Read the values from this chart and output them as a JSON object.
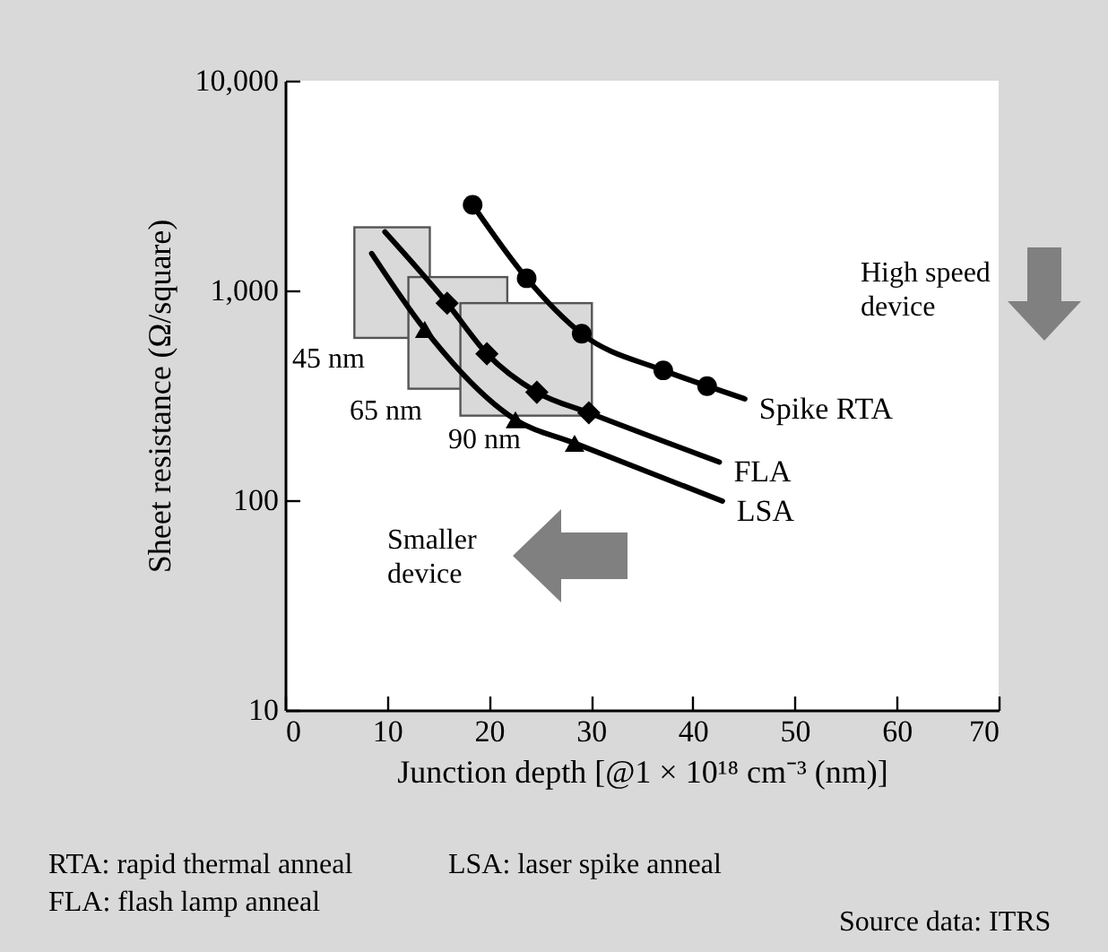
{
  "chart_data": {
    "type": "line",
    "xlabel": "Junction depth [@1 × 10¹⁸ cm⁻³ (nm)]",
    "ylabel": "Sheet resistance (Ω/square)",
    "xlim": [
      0,
      70
    ],
    "xticks": [
      0,
      10,
      20,
      30,
      40,
      50,
      60,
      70
    ],
    "ylim": [
      10,
      10000
    ],
    "log": "y",
    "yticks": [
      10,
      100,
      {
        "value": 1000,
        "label": "1,000"
      },
      {
        "value": 10000,
        "label": "10,000"
      }
    ],
    "grid": false,
    "marker": "none",
    "line_style": "solid",
    "series": [
      {
        "name": "Spike RTA",
        "color": "#000000",
        "x": [
          18.4,
          23.7,
          29.1,
          37.1,
          41.4,
          45.1
        ],
        "values": [
          2560,
          1143,
          622,
          416,
          350,
          304
        ]
      },
      {
        "name": "FLA",
        "color": "#000000",
        "x": [
          9.8,
          15.9,
          19.8,
          24.7,
          29.8,
          42.6
        ],
        "values": [
          1900,
          869,
          499,
          327,
          261,
          152
        ]
      },
      {
        "name": "LSA",
        "color": "#000000",
        "x": [
          8.5,
          13.7,
          22.6,
          28.4,
          42.9
        ],
        "values": [
          1500,
          652,
          242,
          187,
          99
        ]
      },
      {
        "type": "scatter",
        "marker": "circle",
        "color": "#000000",
        "x": [
          18.4,
          23.7,
          29.1,
          37.1,
          41.4
        ],
        "values": [
          2560,
          1143,
          622,
          416,
          350
        ]
      },
      {
        "type": "scatter",
        "marker": "diamond",
        "color": "#000000",
        "x": [
          15.9,
          19.8,
          24.7,
          29.8
        ],
        "values": [
          869,
          499,
          327,
          261
        ]
      },
      {
        "type": "scatter",
        "marker": "triangle",
        "color": "#000000",
        "x": [
          13.7,
          22.6,
          28.4
        ],
        "values": [
          652,
          242,
          187
        ]
      }
    ],
    "annotations": [
      "45 nm",
      "65 nm",
      "90 nm",
      "High speed device",
      "Smaller device",
      "RTA: rapid thermal anneal",
      "LSA: laser spike anneal",
      "FLA: flash lamp anneal",
      "Source data: ITRS"
    ]
  }
}
